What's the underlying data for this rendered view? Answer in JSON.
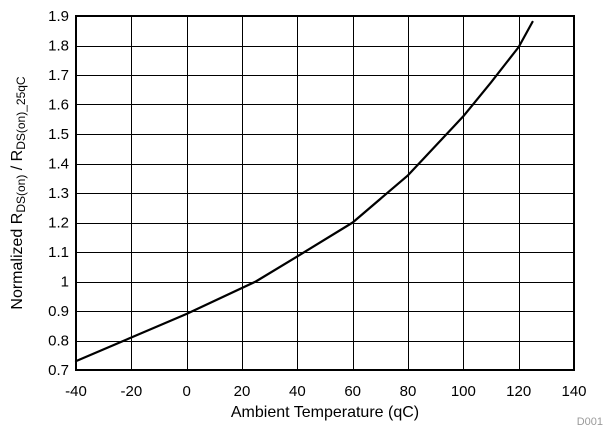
{
  "chart_data": {
    "type": "line",
    "xlabel": "Ambient Temperature (qC)",
    "ylabel": {
      "main": "Normalized R",
      "sub1": "DS(on)",
      "sep": " / R",
      "sub2": "DS(on)_25qC"
    },
    "xlim": [
      -40,
      140
    ],
    "ylim": [
      0.7,
      1.9
    ],
    "xticks": [
      -40,
      -20,
      0,
      20,
      40,
      60,
      80,
      100,
      120,
      140
    ],
    "yticks": [
      0.7,
      0.8,
      0.9,
      1.0,
      1.1,
      1.2,
      1.3,
      1.4,
      1.5,
      1.6,
      1.7,
      1.8,
      1.9
    ],
    "xtick_labels": [
      "-40",
      "-20",
      "0",
      "20",
      "40",
      "60",
      "80",
      "100",
      "120",
      "140"
    ],
    "ytick_labels": [
      "0.7",
      "0.8",
      "0.9",
      "1",
      "1.1",
      "1.2",
      "1.3",
      "1.4",
      "1.5",
      "1.6",
      "1.7",
      "1.8",
      "1.9"
    ],
    "grid": true,
    "series": [
      {
        "color": "#000000",
        "x": [
          -40,
          -20,
          0,
          25,
          40,
          60,
          80,
          100,
          110,
          120,
          125
        ],
        "y": [
          0.73,
          0.81,
          0.89,
          1.0,
          1.085,
          1.2,
          1.36,
          1.56,
          1.675,
          1.795,
          1.88
        ]
      }
    ],
    "figure_id": "D001"
  }
}
